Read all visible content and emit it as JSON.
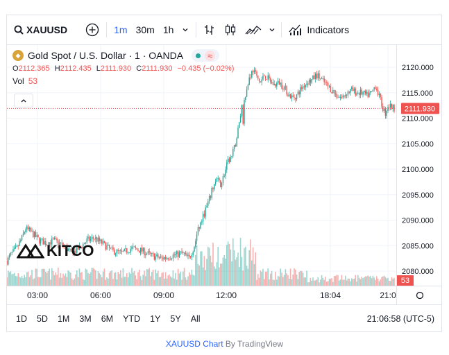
{
  "toolbar": {
    "symbol": "XAUUSD",
    "intervals": [
      "1m",
      "30m",
      "1h"
    ],
    "active_interval": "1m",
    "indicators_label": "Indicators"
  },
  "legend": {
    "title": "Gold Spot / U.S. Dollar · 1 · OANDA",
    "o_label": "O",
    "o_value": "2112.365",
    "h_label": "H",
    "h_value": "2112.435",
    "l_label": "L",
    "l_value": "2111.930",
    "c_label": "C",
    "c_value": "2111.930",
    "change": "−0.435 (−0.02%)",
    "vol_label": "Vol",
    "vol_value": "53"
  },
  "watermark": "KITCO",
  "price_label": "2111.930",
  "volume_label": "53",
  "ranges": [
    "1D",
    "5D",
    "1M",
    "3M",
    "6M",
    "YTD",
    "1Y",
    "5Y",
    "All"
  ],
  "clock": "21:06:58 (UTC-5)",
  "attribution": {
    "symbol_link": "XAUUSD Chart",
    "by": " By TradingView"
  },
  "colors": {
    "up": "#26a69a",
    "down": "#ef5350",
    "accent": "#2962ff"
  },
  "chart_data": {
    "type": "candlestick",
    "y_ticks": [
      "2120.000",
      "2115.000",
      "2110.000",
      "2105.000",
      "2100.000",
      "2095.000",
      "2090.000",
      "2085.000",
      "2080.000"
    ],
    "ylim": [
      2077.5,
      2123.5
    ],
    "x_ticks": [
      "03:00",
      "06:00",
      "09:00",
      "12:00",
      "18:04",
      "21:0"
    ],
    "last_price": 2111.93,
    "price_path": [
      [
        0,
        2082.0
      ],
      [
        4,
        2083.5
      ],
      [
        8,
        2084.5
      ],
      [
        12,
        2086.5
      ],
      [
        15,
        2088.4
      ],
      [
        20,
        2087.5
      ],
      [
        26,
        2086.0
      ],
      [
        32,
        2085.5
      ],
      [
        38,
        2086.0
      ],
      [
        45,
        2085.0
      ],
      [
        52,
        2083.5
      ],
      [
        58,
        2084.5
      ],
      [
        64,
        2086.0
      ],
      [
        70,
        2086.5
      ],
      [
        76,
        2085.5
      ],
      [
        84,
        2084.0
      ],
      [
        92,
        2083.5
      ],
      [
        100,
        2084.5
      ],
      [
        108,
        2084.0
      ],
      [
        116,
        2083.0
      ],
      [
        124,
        2082.5
      ],
      [
        132,
        2083.0
      ],
      [
        140,
        2083.5
      ],
      [
        146,
        2082.5
      ],
      [
        150,
        2085.0
      ],
      [
        153,
        2088.0
      ],
      [
        156,
        2090.0
      ],
      [
        159,
        2092.0
      ],
      [
        162,
        2094.0
      ],
      [
        165,
        2096.5
      ],
      [
        168,
        2098.0
      ],
      [
        171,
        2097.0
      ],
      [
        174,
        2099.0
      ],
      [
        177,
        2101.5
      ],
      [
        180,
        2102.5
      ],
      [
        183,
        2105.0
      ],
      [
        186,
        2109.0
      ],
      [
        188,
        2112.5
      ],
      [
        189,
        2109.0
      ],
      [
        190,
        2114.0
      ],
      [
        192,
        2115.5
      ],
      [
        194,
        2118.0
      ],
      [
        197,
        2119.5
      ],
      [
        200,
        2118.0
      ],
      [
        203,
        2117.0
      ],
      [
        206,
        2118.5
      ],
      [
        210,
        2117.5
      ],
      [
        214,
        2116.5
      ],
      [
        218,
        2117.0
      ],
      [
        222,
        2116.0
      ],
      [
        226,
        2114.5
      ],
      [
        229,
        2114.0
      ],
      [
        232,
        2114.5
      ],
      [
        236,
        2116.0
      ],
      [
        240,
        2117.0
      ],
      [
        244,
        2117.5
      ],
      [
        248,
        2118.5
      ],
      [
        252,
        2117.5
      ],
      [
        256,
        2116.5
      ],
      [
        260,
        2115.5
      ],
      [
        264,
        2114.5
      ],
      [
        268,
        2114.0
      ],
      [
        272,
        2115.0
      ],
      [
        276,
        2115.5
      ],
      [
        280,
        2115.0
      ],
      [
        284,
        2115.0
      ],
      [
        288,
        2114.5
      ],
      [
        292,
        2115.0
      ],
      [
        295,
        2116.5
      ],
      [
        297,
        2115.0
      ],
      [
        299,
        2113.5
      ],
      [
        301,
        2112.0
      ],
      [
        303,
        2111.0
      ],
      [
        305,
        2112.5
      ],
      [
        308,
        2112.3
      ],
      [
        310,
        2111.93
      ]
    ]
  }
}
